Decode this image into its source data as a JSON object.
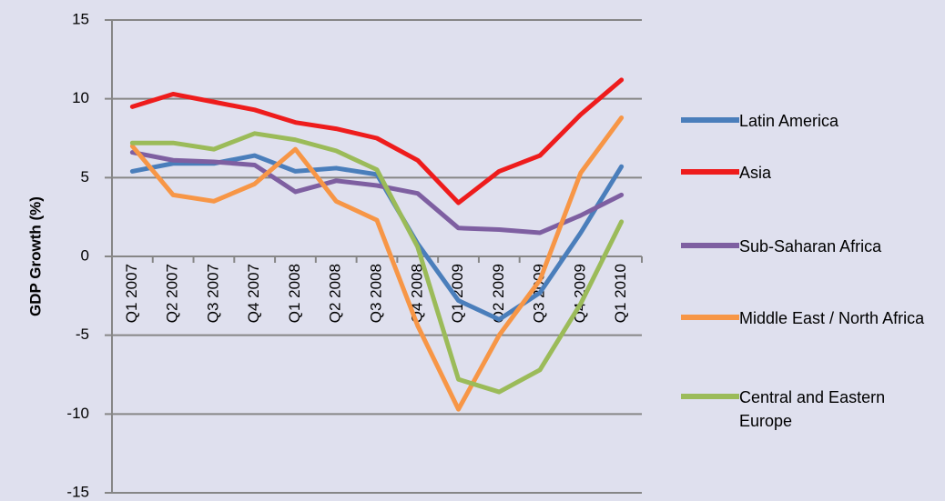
{
  "chart_data": {
    "type": "line",
    "y_label": "GDP Growth (%)",
    "categories": [
      "Q1 2007",
      "Q2 2007",
      "Q3 2007",
      "Q4 2007",
      "Q1 2008",
      "Q2 2008",
      "Q3 2008",
      "Q4 2008",
      "Q1 2009",
      "Q2 2009",
      "Q3 2009",
      "Q4 2009",
      "Q1 2010"
    ],
    "series": [
      {
        "name": "Latin America",
        "color": "#4a7ebb",
        "values": [
          5.4,
          5.9,
          5.9,
          6.4,
          5.4,
          5.6,
          5.2,
          0.8,
          -2.8,
          -4.0,
          -2.3,
          1.5,
          5.7
        ]
      },
      {
        "name": "Asia",
        "color": "#ee1c1c",
        "values": [
          9.5,
          10.3,
          9.8,
          9.3,
          8.5,
          8.1,
          7.5,
          6.1,
          3.4,
          5.4,
          6.4,
          9.0,
          11.2
        ]
      },
      {
        "name": "Sub-Saharan Africa",
        "color": "#7e5fa1",
        "values": [
          6.6,
          6.1,
          6.0,
          5.8,
          4.1,
          4.8,
          4.5,
          4.0,
          1.8,
          1.7,
          1.5,
          2.6,
          3.9
        ]
      },
      {
        "name": "Middle East / North Africa",
        "color": "#f79646",
        "values": [
          7.0,
          3.9,
          3.5,
          4.6,
          6.8,
          3.5,
          2.3,
          -4.4,
          -9.7,
          -5.0,
          -1.5,
          5.3,
          8.8
        ]
      },
      {
        "name": "Central and Eastern Europe",
        "color": "#9bbb59",
        "values": [
          7.2,
          7.2,
          6.8,
          7.8,
          7.4,
          6.7,
          5.5,
          0.6,
          -7.8,
          -8.6,
          -7.2,
          -3.0,
          2.2
        ]
      }
    ],
    "ylim": [
      -15,
      15
    ],
    "yticks": [
      -15,
      -10,
      -5,
      0,
      5,
      10,
      15
    ],
    "grid": true
  }
}
